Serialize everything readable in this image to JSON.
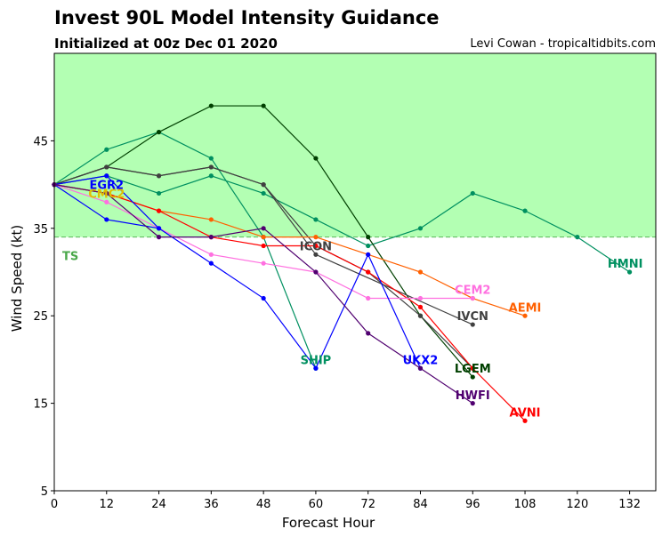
{
  "title": "Invest 90L Model Intensity Guidance",
  "subtitle": "Initialized at 00z Dec 01 2020",
  "credit": "Levi Cowan - tropicaltidbits.com",
  "chart_data": {
    "type": "line",
    "xlabel": "Forecast Hour",
    "ylabel": "Wind Speed (kt)",
    "xlim": [
      0,
      138
    ],
    "ylim": [
      5,
      55
    ],
    "xticks": [
      0,
      12,
      24,
      36,
      48,
      60,
      72,
      84,
      96,
      108,
      120,
      132
    ],
    "yticks": [
      5,
      15,
      25,
      35,
      45
    ],
    "grid": false,
    "bands": [
      {
        "label": "TS",
        "from": 34,
        "to": 55,
        "color": "#b3ffb3",
        "line_color": "#5cb85c",
        "label_color": "#4aa84a"
      }
    ],
    "series": [
      {
        "name": "HMNI",
        "color": "#009060",
        "x": [
          0,
          12,
          24,
          36,
          48,
          60,
          72,
          84,
          96,
          108,
          120,
          132
        ],
        "y": [
          40,
          41,
          39,
          41,
          39,
          36,
          33,
          35,
          39,
          37,
          34,
          30
        ],
        "label_at": [
          131,
          31
        ]
      },
      {
        "name": "SHIP",
        "color": "#009060",
        "x": [
          0,
          12,
          24,
          36,
          48,
          60
        ],
        "y": [
          40,
          44,
          46,
          43,
          34,
          19
        ],
        "label_at": [
          60,
          20
        ]
      },
      {
        "name": "LGEM",
        "color": "#004000",
        "x": [
          0,
          12,
          24,
          36,
          48,
          60,
          72,
          84,
          96
        ],
        "y": [
          40,
          42,
          46,
          49,
          49,
          43,
          34,
          25,
          18
        ],
        "label_at": [
          96,
          19
        ]
      },
      {
        "name": "IVCN",
        "color": "#404040",
        "x": [
          0,
          12,
          24,
          36,
          48,
          60,
          96
        ],
        "y": [
          40,
          42,
          41,
          42,
          40,
          32,
          24
        ],
        "label_at": [
          96,
          25
        ]
      },
      {
        "name": "ICON",
        "color": "#404040",
        "x": [
          0,
          12,
          24,
          36,
          48,
          60,
          72,
          84,
          96
        ],
        "y": [
          40,
          42,
          41,
          42,
          40,
          33,
          30,
          25,
          19
        ],
        "label_at": [
          60,
          33
        ]
      },
      {
        "name": "AEMI",
        "color": "#ff6000",
        "x": [
          0,
          12,
          24,
          36,
          48,
          60,
          72,
          84,
          96,
          108
        ],
        "y": [
          40,
          39,
          37,
          36,
          34,
          34,
          32,
          30,
          27,
          25
        ],
        "label_at": [
          108,
          26
        ]
      },
      {
        "name": "AVNI",
        "color": "#ff0000",
        "x": [
          0,
          12,
          24,
          36,
          48,
          60,
          72,
          84,
          96,
          108
        ],
        "y": [
          40,
          39,
          37,
          34,
          33,
          33,
          30,
          26,
          19,
          13
        ],
        "label_at": [
          108,
          14
        ]
      },
      {
        "name": "CEM2",
        "color": "#ff70e0",
        "x": [
          0,
          12,
          24,
          36,
          48,
          60,
          72,
          84,
          96
        ],
        "y": [
          40,
          38,
          35,
          32,
          31,
          30,
          27,
          27,
          27
        ],
        "label_at": [
          96,
          28
        ]
      },
      {
        "name": "EGR2",
        "color": "#0000ff",
        "x": [
          0,
          12,
          24
        ],
        "y": [
          40,
          36,
          35
        ],
        "label_at": [
          12,
          40
        ]
      },
      {
        "name": "UKX2",
        "color": "#0000ff",
        "x": [
          0,
          12,
          24,
          36,
          48,
          60,
          72,
          84
        ],
        "y": [
          40,
          41,
          35,
          31,
          27,
          19,
          32,
          19
        ],
        "label_at": [
          84,
          20
        ]
      },
      {
        "name": "CMC2",
        "color": "#e0c000",
        "x": [
          0,
          12
        ],
        "y": [
          40,
          39
        ],
        "label_at": [
          12,
          39
        ]
      },
      {
        "name": "HWFI",
        "color": "#500070",
        "x": [
          0,
          12,
          24,
          36,
          48,
          60,
          72,
          84,
          96
        ],
        "y": [
          40,
          39,
          34,
          34,
          35,
          30,
          23,
          19,
          15
        ],
        "label_at": [
          96,
          16
        ]
      }
    ]
  }
}
